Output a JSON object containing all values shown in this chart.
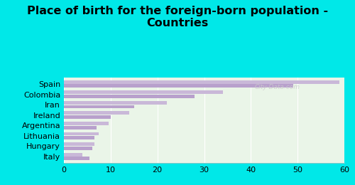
{
  "title": "Place of birth for the foreign-born population -\nCountries",
  "categories": [
    "Spain",
    "Colombia",
    "Iran",
    "Ireland",
    "Argentina",
    "Lithuania",
    "Hungary",
    "Italy"
  ],
  "values1": [
    59,
    34,
    22,
    14,
    9.5,
    7.5,
    6.5,
    4.0
  ],
  "values2": [
    49,
    28,
    15,
    10,
    7.0,
    6.5,
    6.0,
    5.5
  ],
  "bar_color1": "#c9b8d8",
  "bar_color2": "#b8a0cc",
  "bg_outer": "#00e8e8",
  "bg_inner": "#eaf5e8",
  "xlim": [
    0,
    60
  ],
  "xticks": [
    0,
    10,
    20,
    30,
    40,
    50,
    60
  ],
  "title_fontsize": 11.5,
  "label_fontsize": 8,
  "tick_fontsize": 8
}
